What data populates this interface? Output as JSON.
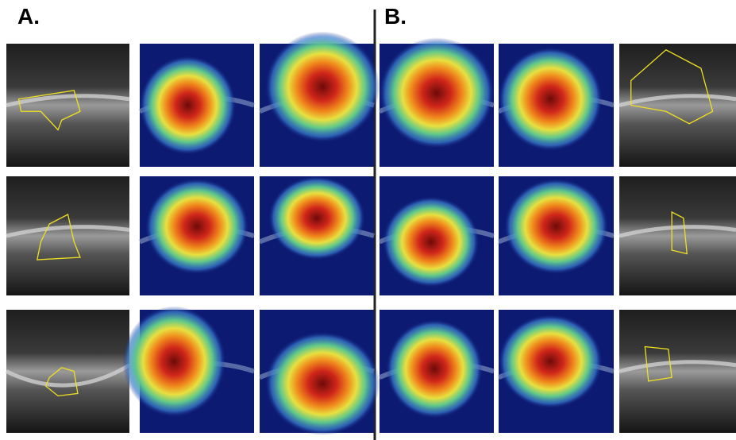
{
  "panels": [
    {
      "label": "A."
    },
    {
      "label": "B."
    }
  ]
}
